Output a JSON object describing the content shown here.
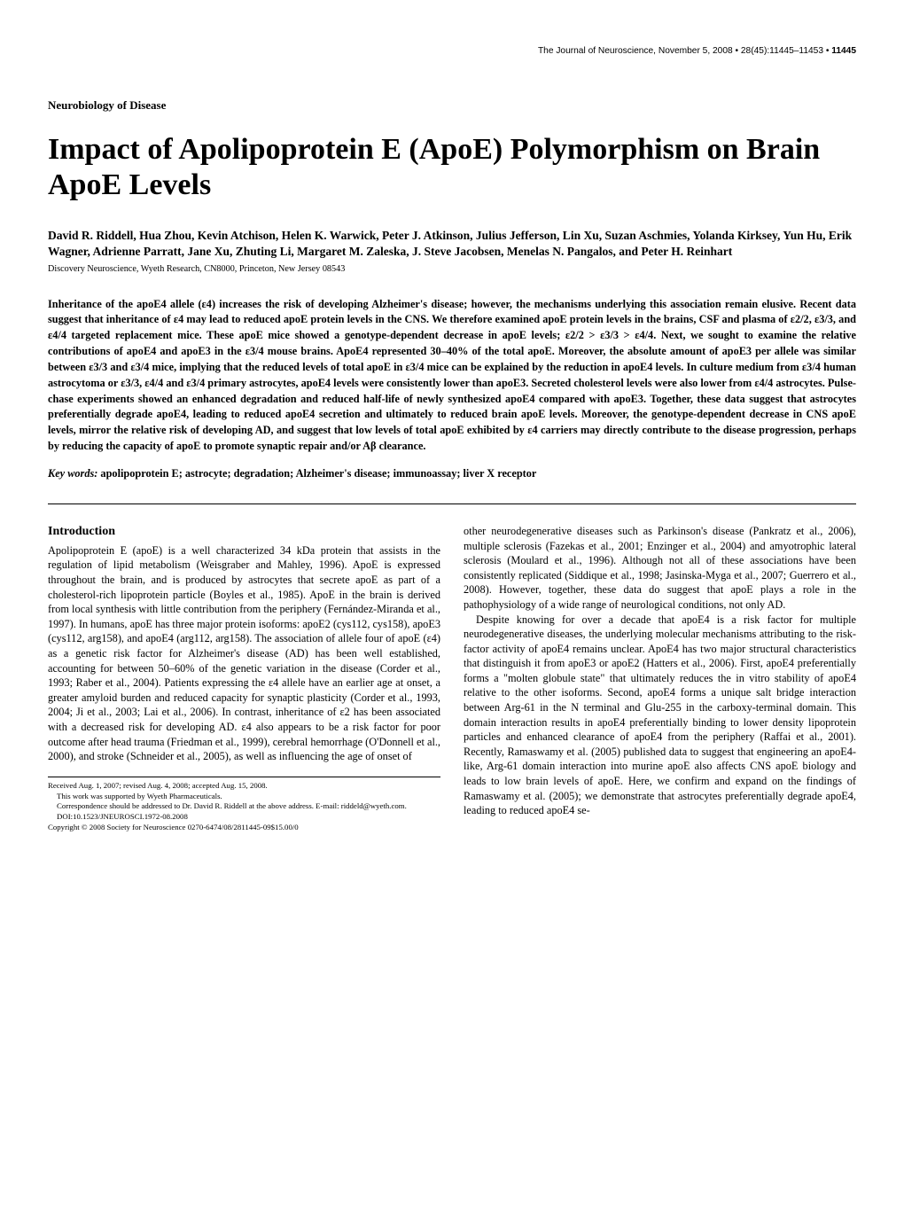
{
  "running_head": {
    "journal": "The Journal of Neuroscience, November 5, 2008",
    "dot": " • ",
    "issue": "28(45):11445–11453",
    "pagenum": "11445"
  },
  "section_label": "Neurobiology of Disease",
  "title": "Impact of Apolipoprotein E (ApoE) Polymorphism on Brain ApoE Levels",
  "authors": "David R. Riddell, Hua Zhou, Kevin Atchison, Helen K. Warwick, Peter J. Atkinson, Julius Jefferson, Lin Xu, Suzan Aschmies, Yolanda Kirksey, Yun Hu, Erik Wagner, Adrienne Parratt, Jane Xu, Zhuting Li, Margaret M. Zaleska, J. Steve Jacobsen, Menelas N. Pangalos, and Peter H. Reinhart",
  "affiliation": "Discovery Neuroscience, Wyeth Research, CN8000, Princeton, New Jersey 08543",
  "abstract": "Inheritance of the apoE4 allele (ε4) increases the risk of developing Alzheimer's disease; however, the mechanisms underlying this association remain elusive. Recent data suggest that inheritance of ε4 may lead to reduced apoE protein levels in the CNS. We therefore examined apoE protein levels in the brains, CSF and plasma of ε2/2, ε3/3, and ε4/4 targeted replacement mice. These apoE mice showed a genotype-dependent decrease in apoE levels; ε2/2 > ε3/3 > ε4/4. Next, we sought to examine the relative contributions of apoE4 and apoE3 in the ε3/4 mouse brains. ApoE4 represented 30–40% of the total apoE. Moreover, the absolute amount of apoE3 per allele was similar between ε3/3 and ε3/4 mice, implying that the reduced levels of total apoE in ε3/4 mice can be explained by the reduction in apoE4 levels. In culture medium from ε3/4 human astrocytoma or ε3/3, ε4/4 and ε3/4 primary astrocytes, apoE4 levels were consistently lower than apoE3. Secreted cholesterol levels were also lower from ε4/4 astrocytes. Pulse-chase experiments showed an enhanced degradation and reduced half-life of newly synthesized apoE4 compared with apoE3. Together, these data suggest that astrocytes preferentially degrade apoE4, leading to reduced apoE4 secretion and ultimately to reduced brain apoE levels. Moreover, the genotype-dependent decrease in CNS apoE levels, mirror the relative risk of developing AD, and suggest that low levels of total apoE exhibited by ε4 carriers may directly contribute to the disease progression, perhaps by reducing the capacity of apoE to promote synaptic repair and/or Aβ clearance.",
  "keywords_label": "Key words:",
  "keywords_body": " apolipoprotein E; astrocyte; degradation; Alzheimer's disease; immunoassay; liver X receptor",
  "intro_heading": "Introduction",
  "col_left_p1": "Apolipoprotein E (apoE) is a well characterized 34 kDa protein that assists in the regulation of lipid metabolism (Weisgraber and Mahley, 1996). ApoE is expressed throughout the brain, and is produced by astrocytes that secrete apoE as part of a cholesterol-rich lipoprotein particle (Boyles et al., 1985). ApoE in the brain is derived from local synthesis with little contribution from the periphery (Fernández-Miranda et al., 1997). In humans, apoE has three major protein isoforms: apoE2 (cys112, cys158), apoE3 (cys112, arg158), and apoE4 (arg112, arg158). The association of allele four of apoE (ε4) as a genetic risk factor for Alzheimer's disease (AD) has been well established, accounting for between 50–60% of the genetic variation in the disease (Corder et al., 1993; Raber et al., 2004). Patients expressing the ε4 allele have an earlier age at onset, a greater amyloid burden and reduced capacity for synaptic plasticity (Corder et al., 1993, 2004; Ji et al., 2003; Lai et al., 2006). In contrast, inheritance of ε2 has been associated with a decreased risk for developing AD. ε4 also appears to be a risk factor for poor outcome after head trauma (Friedman et al., 1999), cerebral hemorrhage (O'Donnell et al., 2000), and stroke (Schneider et al., 2005), as well as influencing the age of onset of",
  "col_right_p1": "other neurodegenerative diseases such as Parkinson's disease (Pankratz et al., 2006), multiple sclerosis (Fazekas et al., 2001; Enzinger et al., 2004) and amyotrophic lateral sclerosis (Moulard et al., 1996). Although not all of these associations have been consistently replicated (Siddique et al., 1998; Jasinska-Myga et al., 2007; Guerrero et al., 2008). However, together, these data do suggest that apoE plays a role in the pathophysiology of a wide range of neurological conditions, not only AD.",
  "col_right_p2": "Despite knowing for over a decade that apoE4 is a risk factor for multiple neurodegenerative diseases, the underlying molecular mechanisms attributing to the risk-factor activity of apoE4 remains unclear. ApoE4 has two major structural characteristics that distinguish it from apoE3 or apoE2 (Hatters et al., 2006). First, apoE4 preferentially forms a \"molten globule state\" that ultimately reduces the in vitro stability of apoE4 relative to the other isoforms. Second, apoE4 forms a unique salt bridge interaction between Arg-61 in the N terminal and Glu-255 in the carboxy-terminal domain. This domain interaction results in apoE4 preferentially binding to lower density lipoprotein particles and enhanced clearance of apoE4 from the periphery (Raffai et al., 2001). Recently, Ramaswamy et al. (2005) published data to suggest that engineering an apoE4-like, Arg-61 domain interaction into murine apoE also affects CNS apoE biology and leads to low brain levels of apoE. Here, we confirm and expand on the findings of Ramaswamy et al. (2005); we demonstrate that astrocytes preferentially degrade apoE4, leading to reduced apoE4 se-",
  "footnotes": {
    "received": "Received Aug. 1, 2007; revised Aug. 4, 2008; accepted Aug. 15, 2008.",
    "support": "This work was supported by Wyeth Pharmaceuticals.",
    "correspondence": "Correspondence should be addressed to Dr. David R. Riddell at the above address. E-mail: riddeld@wyeth.com.",
    "doi": "DOI:10.1523/JNEUROSCI.1972-08.2008",
    "copyright": "Copyright © 2008 Society for Neuroscience   0270-6474/08/2811445-09$15.00/0"
  }
}
